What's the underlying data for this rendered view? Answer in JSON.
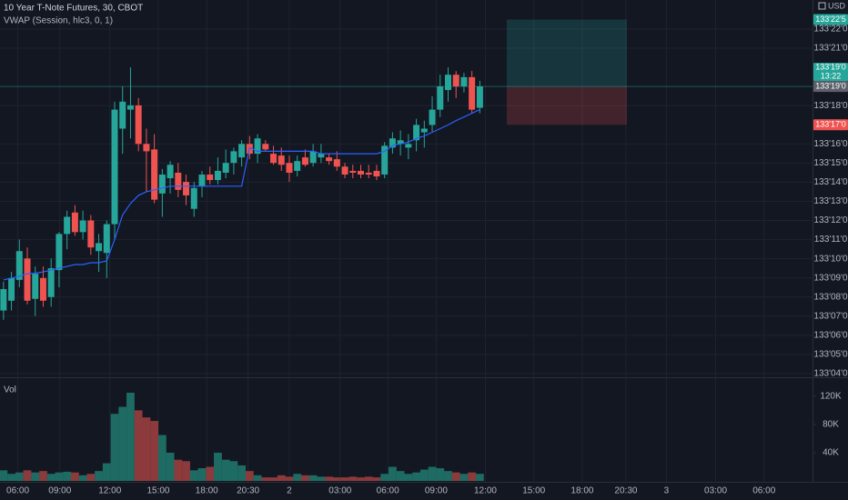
{
  "header": {
    "symbol": "10 Year T-Note Futures, 30, CBOT",
    "indicator": "VWAP (Session, hlc3, 0, 1)",
    "currency": "USD"
  },
  "chart_data": [
    {
      "type": "candlestick",
      "up_color": "#26a69a",
      "down_color": "#ef5350",
      "grid": true,
      "open": [
        133.228,
        133.244,
        133.278,
        133.313,
        133.247,
        133.281,
        133.25,
        133.294,
        133.353,
        133.388,
        133.356,
        133.375,
        133.325,
        133.322,
        133.369,
        133.525,
        133.556,
        133.563,
        133.5,
        133.491,
        133.419,
        133.444,
        133.453,
        133.438,
        133.394,
        133.431,
        133.45,
        133.441,
        133.453,
        133.469,
        133.478,
        133.5,
        133.484,
        133.5,
        133.484,
        133.481,
        133.469,
        133.456,
        133.478,
        133.469,
        133.478,
        133.478,
        133.475,
        133.463,
        133.456,
        133.456,
        133.453,
        133.456,
        133.45,
        133.494,
        133.5,
        133.494,
        133.506,
        133.519,
        133.531,
        133.556,
        133.588,
        133.613,
        133.594,
        133.609,
        133.559
      ],
      "high": [
        133.275,
        133.291,
        133.344,
        133.331,
        133.3,
        133.3,
        133.313,
        133.356,
        133.391,
        133.4,
        133.391,
        133.384,
        133.353,
        133.375,
        133.569,
        133.594,
        133.625,
        133.575,
        133.525,
        133.516,
        133.459,
        133.472,
        133.469,
        133.45,
        133.438,
        133.456,
        133.463,
        133.478,
        133.491,
        133.494,
        133.506,
        133.513,
        133.516,
        133.506,
        133.497,
        133.494,
        133.481,
        133.481,
        133.491,
        133.5,
        133.5,
        133.484,
        133.488,
        133.469,
        133.466,
        133.466,
        133.466,
        133.466,
        133.503,
        133.519,
        133.522,
        133.516,
        133.541,
        133.538,
        133.578,
        133.613,
        133.625,
        133.619,
        133.616,
        133.619,
        133.603
      ],
      "low": [
        133.213,
        133.228,
        133.266,
        133.238,
        133.219,
        133.234,
        133.234,
        133.266,
        133.328,
        133.35,
        133.344,
        133.319,
        133.291,
        133.281,
        133.344,
        133.484,
        133.509,
        133.488,
        133.422,
        133.403,
        133.381,
        133.419,
        133.413,
        133.4,
        133.381,
        133.413,
        133.434,
        133.434,
        133.444,
        133.45,
        133.463,
        133.475,
        133.469,
        133.488,
        133.466,
        133.456,
        133.438,
        133.447,
        133.463,
        133.463,
        133.469,
        133.466,
        133.456,
        133.444,
        133.444,
        133.444,
        133.444,
        133.441,
        133.444,
        133.484,
        133.481,
        133.475,
        133.488,
        133.494,
        133.519,
        133.544,
        133.569,
        133.575,
        133.584,
        133.55,
        133.55
      ],
      "close": [
        133.263,
        133.281,
        133.325,
        133.244,
        133.288,
        133.244,
        133.297,
        133.353,
        133.381,
        133.356,
        133.375,
        133.331,
        133.338,
        133.369,
        133.556,
        133.569,
        133.563,
        133.5,
        133.488,
        133.409,
        133.45,
        133.466,
        133.425,
        133.416,
        133.428,
        133.45,
        133.441,
        133.456,
        133.469,
        133.488,
        133.5,
        133.484,
        133.509,
        133.491,
        133.469,
        133.466,
        133.453,
        133.472,
        133.466,
        133.488,
        133.484,
        133.472,
        133.463,
        133.45,
        133.453,
        133.45,
        133.45,
        133.447,
        133.497,
        133.509,
        133.506,
        133.5,
        133.531,
        133.525,
        133.556,
        133.594,
        133.613,
        133.594,
        133.609,
        133.556,
        133.594
      ],
      "overlay": {
        "name": "VWAP (Session, hlc3, 0, 1)",
        "color": "#2962ff",
        "values": [
          133.278,
          133.281,
          133.284,
          133.288,
          133.289,
          133.291,
          133.294,
          133.297,
          133.3,
          133.303,
          133.303,
          133.306,
          133.306,
          133.309,
          133.344,
          133.384,
          133.403,
          133.416,
          133.422,
          133.425,
          133.428,
          133.431,
          133.431,
          133.431,
          133.431,
          133.431,
          133.431,
          133.431,
          133.431,
          133.431,
          133.431,
          133.494,
          133.488,
          133.488,
          133.488,
          133.488,
          133.488,
          133.488,
          133.488,
          133.488,
          133.484,
          133.484,
          133.484,
          133.484,
          133.484,
          133.484,
          133.484,
          133.484,
          133.488,
          133.497,
          133.5,
          133.503,
          133.509,
          133.513,
          133.519,
          133.525,
          133.531,
          133.538,
          133.544,
          133.55,
          133.556
        ]
      },
      "ylim": [
        133.119,
        133.735
      ],
      "yticks": [
        {
          "value": 133.125,
          "label": "133'04'0"
        },
        {
          "value": 133.15625,
          "label": "133'05'0"
        },
        {
          "value": 133.1875,
          "label": "133'06'0"
        },
        {
          "value": 133.21875,
          "label": "133'07'0"
        },
        {
          "value": 133.25,
          "label": "133'08'0"
        },
        {
          "value": 133.28125,
          "label": "133'09'0"
        },
        {
          "value": 133.3125,
          "label": "133'10'0"
        },
        {
          "value": 133.34375,
          "label": "133'11'0"
        },
        {
          "value": 133.375,
          "label": "133'12'0"
        },
        {
          "value": 133.40625,
          "label": "133'13'0"
        },
        {
          "value": 133.4375,
          "label": "133'14'0"
        },
        {
          "value": 133.46875,
          "label": "133'15'0"
        },
        {
          "value": 133.5,
          "label": "133'16'0"
        },
        {
          "value": 133.5625,
          "label": "133'18'0"
        },
        {
          "value": 133.65625,
          "label": "133'21'0"
        },
        {
          "value": 133.6875,
          "label": "133'22'0"
        }
      ],
      "xlim": [
        -0.44,
        101.9
      ],
      "xticks": [
        {
          "value": 1.8,
          "label": "06:00"
        },
        {
          "value": 7.1,
          "label": "09:00"
        },
        {
          "value": 13.4,
          "label": "12:00"
        },
        {
          "value": 19.5,
          "label": "15:00"
        },
        {
          "value": 25.6,
          "label": "18:00"
        },
        {
          "value": 30.8,
          "label": "20:30"
        },
        {
          "value": 36,
          "label": "2"
        },
        {
          "value": 42.4,
          "label": "03:00"
        },
        {
          "value": 48.4,
          "label": "06:00"
        },
        {
          "value": 54.5,
          "label": "09:00"
        },
        {
          "value": 60.7,
          "label": "12:00"
        },
        {
          "value": 66.8,
          "label": "15:00"
        },
        {
          "value": 72.9,
          "label": "18:00"
        },
        {
          "value": 78.4,
          "label": "20:30"
        },
        {
          "value": 83.5,
          "label": "3"
        },
        {
          "value": 89.7,
          "label": "03:00"
        },
        {
          "value": 95.8,
          "label": "06:00"
        }
      ]
    },
    {
      "type": "bar",
      "title": "Vol",
      "up_color": "#1e6b63",
      "down_color": "#8c3a3c",
      "values": [
        15000,
        10000,
        12000,
        15000,
        12000,
        14000,
        10000,
        12000,
        13000,
        12000,
        8000,
        10000,
        14000,
        25000,
        95000,
        105000,
        125000,
        100000,
        90000,
        85000,
        65000,
        40000,
        30000,
        28000,
        15000,
        18000,
        20000,
        40000,
        30000,
        28000,
        22000,
        14000,
        8000,
        5000,
        5000,
        8000,
        6000,
        10000,
        8000,
        8000,
        6000,
        6000,
        5000,
        5000,
        6000,
        5000,
        6000,
        5000,
        10000,
        20000,
        14000,
        10000,
        12000,
        16000,
        20000,
        18000,
        14000,
        12000,
        10000,
        12000,
        10000
      ],
      "ylim": [
        0,
        143000
      ],
      "yticks": [
        {
          "value": 40000,
          "label": "40K"
        },
        {
          "value": 80000,
          "label": "80K"
        },
        {
          "value": 120000,
          "label": "120K"
        }
      ]
    }
  ],
  "position": {
    "target": {
      "value": 133.703125,
      "label": "133'22'5"
    },
    "entry": {
      "value": 133.59375,
      "label": "133'19'0"
    },
    "stop": {
      "value": 133.53125,
      "label": "133'17'0"
    }
  },
  "last_price": {
    "value": 133.59375,
    "label": "133'19'0",
    "countdown": "13:22"
  }
}
